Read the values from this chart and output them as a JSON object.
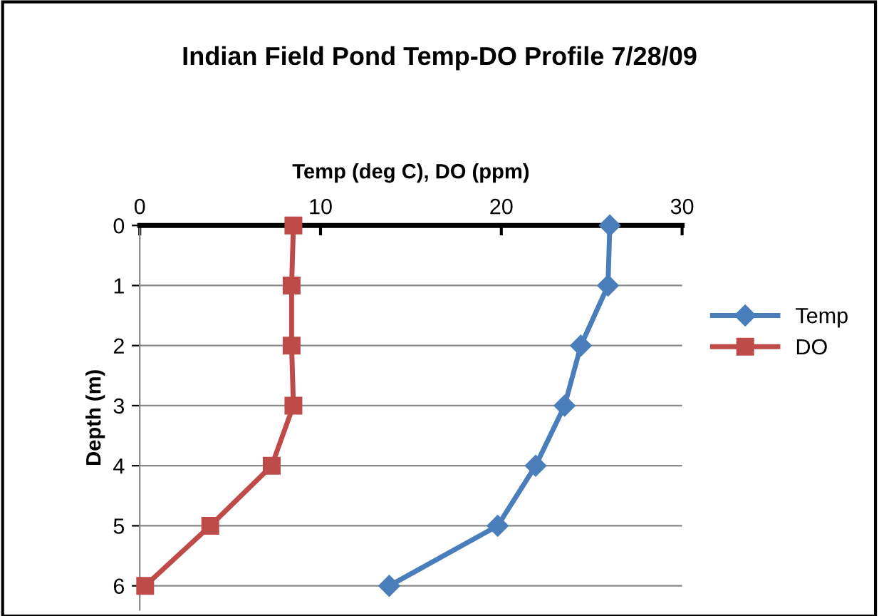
{
  "chart_data": {
    "type": "line",
    "title": "Indian Field Pond Temp-DO Profile 7/28/09",
    "xlabel": "Temp (deg C), DO (ppm)",
    "ylabel": "Depth (m)",
    "xlim": [
      0,
      30
    ],
    "xticks": [
      0,
      10,
      20,
      30
    ],
    "ylim": [
      6.4,
      0
    ],
    "yticks": [
      0,
      1,
      2,
      3,
      4,
      5,
      6
    ],
    "grid": "y",
    "legend": "right",
    "series": [
      {
        "name": "Temp",
        "color": "#4a7ebb",
        "marker": "diamond",
        "x": [
          26.0,
          25.9,
          24.4,
          23.5,
          21.9,
          19.8,
          13.8
        ],
        "values": [
          0,
          1,
          2,
          3,
          4,
          5,
          6
        ]
      },
      {
        "name": "DO",
        "color": "#be4b48",
        "marker": "square",
        "x": [
          8.5,
          8.4,
          8.4,
          8.5,
          7.3,
          3.9,
          0.3
        ],
        "values": [
          0,
          1,
          2,
          3,
          4,
          5,
          6
        ]
      }
    ]
  }
}
